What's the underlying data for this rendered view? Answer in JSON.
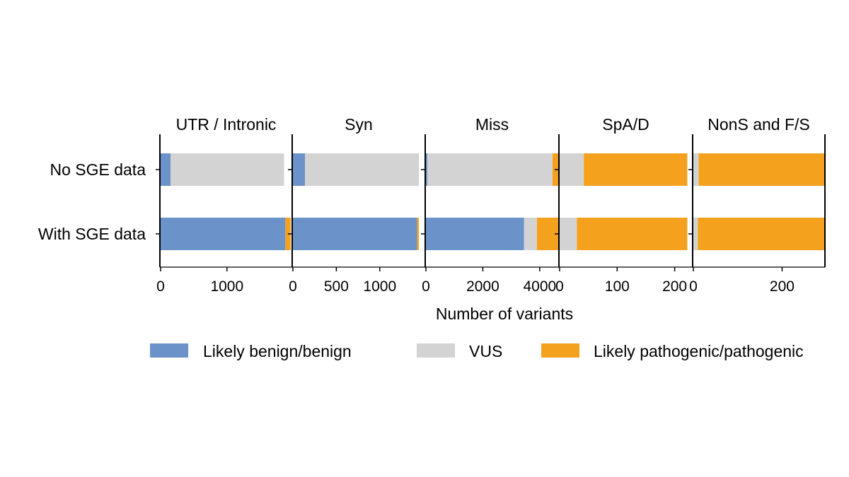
{
  "chart_data": {
    "type": "bar",
    "orientation": "horizontal",
    "stacked": true,
    "categories": [
      "No SGE data",
      "With SGE data"
    ],
    "xlabel": "Number of variants",
    "legend_position": "bottom",
    "series_names": [
      "Likely benign/benign",
      "VUS",
      "Likely pathogenic/pathogenic"
    ],
    "colors": {
      "benign": "#6b93c9",
      "vus": "#d3d3d3",
      "pathogenic": "#f4a21e",
      "axis": "#000000"
    },
    "panels": [
      {
        "title": "UTR / Intronic",
        "xlim": [
          0,
          1972
        ],
        "ticks": [
          0,
          1000
        ],
        "values": {
          "No SGE data": [
            150,
            1710,
            0
          ],
          "With SGE data": [
            1880,
            0,
            80
          ]
        }
      },
      {
        "title": "Syn",
        "xlim": [
          0,
          1515
        ],
        "ticks": [
          0,
          500,
          1000
        ],
        "values": {
          "No SGE data": [
            140,
            1310,
            0
          ],
          "With SGE data": [
            1430,
            0,
            20
          ]
        }
      },
      {
        "title": "Miss",
        "xlim": [
          0,
          4650
        ],
        "ticks": [
          0,
          2000,
          4000
        ],
        "values": {
          "No SGE data": [
            50,
            4400,
            200
          ],
          "With SGE data": [
            3450,
            450,
            750
          ]
        }
      },
      {
        "title": "SpA/D",
        "xlim": [
          0,
          230
        ],
        "ticks": [
          0,
          100,
          200
        ],
        "values": {
          "No SGE data": [
            0,
            42,
            180
          ],
          "With SGE data": [
            0,
            30,
            192
          ]
        }
      },
      {
        "title": "NonS and F/S",
        "xlim": [
          0,
          295
        ],
        "ticks": [
          0,
          200
        ],
        "values": {
          "No SGE data": [
            0,
            12,
            283
          ],
          "With SGE data": [
            0,
            10,
            285
          ]
        }
      }
    ]
  }
}
